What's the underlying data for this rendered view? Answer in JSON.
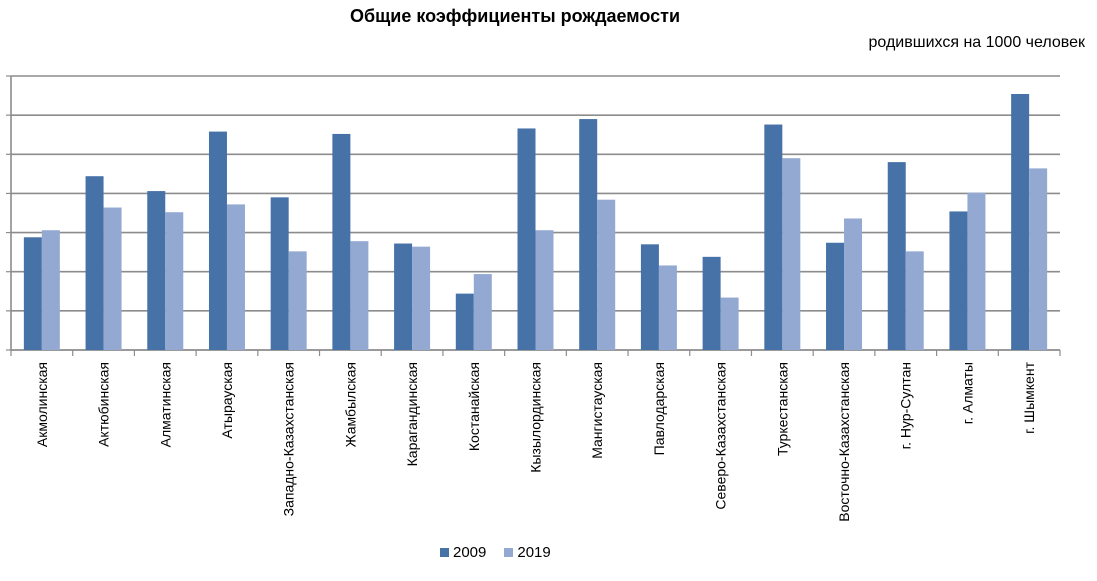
{
  "chart_data": {
    "type": "bar",
    "title": "Общие коэффициенты рождаемости",
    "subtitle": "родившихся на 1000 человек",
    "categories": [
      "Акмолинская",
      "Актюбинская",
      "Алматинская",
      "Атырауская",
      "Западно-Казахстанская",
      "Жамбылская",
      "Карагандинская",
      "Костанайская",
      "Кызылординская",
      "Мангистауская",
      "Павлодарская",
      "Северо-Казахстанская",
      "Туркестанская",
      "Восточно-Казахстанская",
      "г. Нур-Султан",
      "г. Алматы",
      "г. Шымкент"
    ],
    "series": [
      {
        "name": "2009",
        "color": "#4672a8",
        "values": [
          14.4,
          22.2,
          20.3,
          27.9,
          19.5,
          27.6,
          13.6,
          7.2,
          28.3,
          29.5,
          13.5,
          11.9,
          28.8,
          13.7,
          24.0,
          17.7,
          32.7
        ]
      },
      {
        "name": "2019",
        "color": "#93a9d2",
        "values": [
          15.3,
          18.2,
          17.6,
          18.6,
          12.6,
          13.9,
          13.2,
          9.7,
          15.3,
          19.2,
          10.8,
          6.7,
          24.5,
          16.8,
          12.6,
          20.1,
          23.2
        ]
      }
    ],
    "ylim": [
      0,
      35
    ],
    "grid": true,
    "legend_position": "bottom"
  }
}
